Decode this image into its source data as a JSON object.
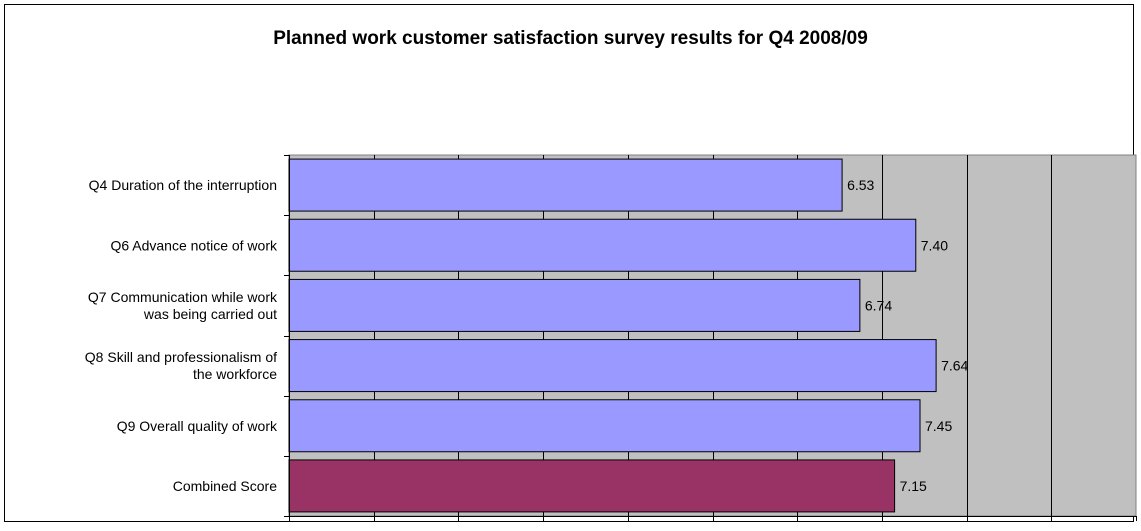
{
  "chart_data": {
    "type": "bar",
    "orientation": "horizontal",
    "title": "Planned work customer satisfaction survey results for Q4 2008/09",
    "xlabel": "",
    "ylabel": "",
    "xlim": [
      0,
      10
    ],
    "grid": true,
    "legend": "none",
    "categories": [
      [
        "Q4 Duration of the interruption"
      ],
      [
        "Q6  Advance notice of work"
      ],
      [
        "Q7 Communication while work",
        "was being carried out"
      ],
      [
        "Q8 Skill and professionalism of",
        "the workforce"
      ],
      [
        "Q9 Overall quality of work"
      ],
      [
        "Combined Score"
      ]
    ],
    "values": [
      6.53,
      7.4,
      6.74,
      7.64,
      7.45,
      7.15
    ],
    "value_labels": [
      "6.53",
      "7.40",
      "6.74",
      "7.64",
      "7.45",
      "7.15"
    ],
    "bar_colors": [
      "#9999FF",
      "#9999FF",
      "#9999FF",
      "#9999FF",
      "#9999FF",
      "#993366"
    ],
    "plot_background": "#C0C0C0"
  }
}
